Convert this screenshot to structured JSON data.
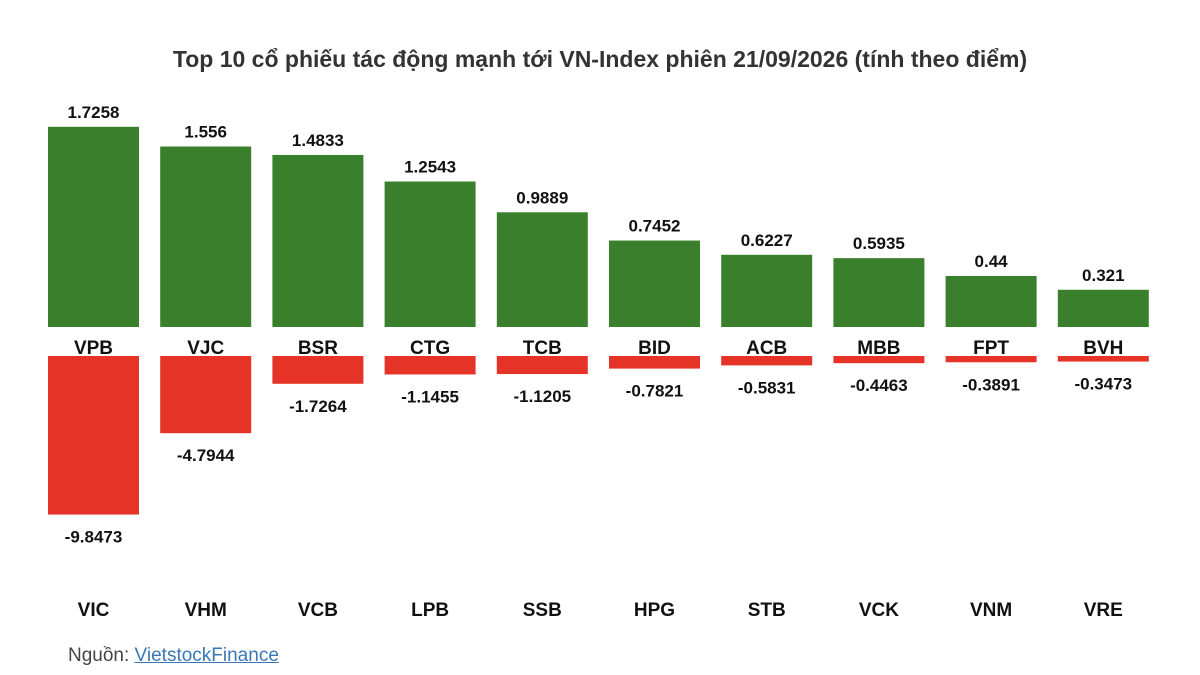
{
  "chart_data": {
    "type": "bar",
    "title": "Top 10 cổ phiếu tác động mạnh tới VN-Index phiên 21/09/2026 (tính theo điểm)",
    "colors": {
      "positive": "#3a7f2b",
      "negative": "#e53427"
    },
    "positive_series": {
      "categories": [
        "VPB",
        "VJC",
        "BSR",
        "CTG",
        "TCB",
        "BID",
        "ACB",
        "MBB",
        "FPT",
        "BVH"
      ],
      "values": [
        1.7258,
        1.556,
        1.4833,
        1.2543,
        0.9889,
        0.7452,
        0.6227,
        0.5935,
        0.44,
        0.321
      ],
      "value_labels": [
        "1.7258",
        "1.556",
        "1.4833",
        "1.2543",
        "0.9889",
        "0.7452",
        "0.6227",
        "0.5935",
        "0.44",
        "0.321"
      ]
    },
    "negative_series": {
      "categories": [
        "VIC",
        "VHM",
        "VCB",
        "LPB",
        "SSB",
        "HPG",
        "STB",
        "VCK",
        "VNM",
        "VRE"
      ],
      "values": [
        -9.8473,
        -4.7944,
        -1.7264,
        -1.1455,
        -1.1205,
        -0.7821,
        -0.5831,
        -0.4463,
        -0.3891,
        -0.3473
      ],
      "value_labels": [
        "-9.8473",
        "-4.7944",
        "-1.7264",
        "-1.1455",
        "-1.1205",
        "-0.7821",
        "-0.5831",
        "-0.4463",
        "-0.3891",
        "-0.3473"
      ]
    }
  },
  "source": {
    "prefix": "Nguồn: ",
    "link_text": "VietstockFinance"
  }
}
